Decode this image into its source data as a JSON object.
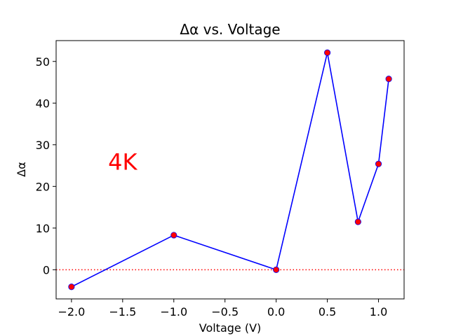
{
  "chart_data": {
    "type": "line",
    "title": "Δα vs. Voltage",
    "xlabel": "Voltage (V)",
    "ylabel": "Δα",
    "xlim": [
      -2.15,
      1.25
    ],
    "ylim": [
      -7,
      55
    ],
    "xticks": [
      -2.0,
      -1.5,
      -1.0,
      -0.5,
      0.0,
      0.5,
      1.0
    ],
    "xtick_labels": [
      "−2.0",
      "−1.5",
      "−1.0",
      "−0.5",
      "0.0",
      "0.5",
      "1.0"
    ],
    "yticks": [
      0,
      10,
      20,
      30,
      40,
      50
    ],
    "ytick_labels": [
      "0",
      "10",
      "20",
      "30",
      "40",
      "50"
    ],
    "grid": false,
    "series": [
      {
        "x": [
          -2.0,
          -1.0,
          0.0,
          0.5,
          0.8,
          1.0,
          1.1
        ],
        "y": [
          -4.1,
          8.3,
          0.0,
          52.1,
          11.5,
          25.4,
          45.8
        ],
        "line_color": "#0000ff",
        "marker_color": "#ff0000"
      }
    ],
    "reference_line": {
      "y": 0,
      "color": "#ff0000",
      "style": "dotted"
    },
    "annotation": {
      "text": "4K",
      "x": -1.5,
      "y": 26,
      "color": "#ff0000"
    }
  }
}
